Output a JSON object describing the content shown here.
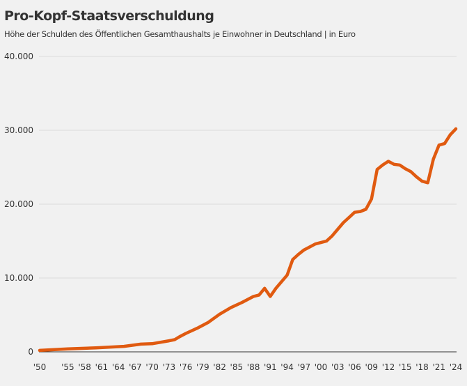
{
  "chart_data": {
    "type": "line",
    "title": "Pro-Kopf-Staatsverschuldung",
    "subtitle": "Höhe der Schulden des Öffentlichen Gesamthaushalts je Einwohner in Deutschland | in Euro",
    "xlabel": "",
    "ylabel": "",
    "ylim": [
      0,
      40000
    ],
    "xlim": [
      1950,
      2024
    ],
    "grid": true,
    "line_color": "#e05a10",
    "y_ticks": [
      {
        "value": 0,
        "label": "0"
      },
      {
        "value": 10000,
        "label": "10.000"
      },
      {
        "value": 20000,
        "label": "20.000"
      },
      {
        "value": 30000,
        "label": "30.000"
      },
      {
        "value": 40000,
        "label": "40.000"
      }
    ],
    "x_ticks": [
      {
        "value": 1950,
        "label": "'50"
      },
      {
        "value": 1955,
        "label": "'55"
      },
      {
        "value": 1958,
        "label": "'58"
      },
      {
        "value": 1961,
        "label": "'61"
      },
      {
        "value": 1964,
        "label": "'64"
      },
      {
        "value": 1967,
        "label": "'67"
      },
      {
        "value": 1970,
        "label": "'70"
      },
      {
        "value": 1973,
        "label": "'73"
      },
      {
        "value": 1976,
        "label": "'76"
      },
      {
        "value": 1979,
        "label": "'79"
      },
      {
        "value": 1982,
        "label": "'82"
      },
      {
        "value": 1985,
        "label": "'85"
      },
      {
        "value": 1988,
        "label": "'88"
      },
      {
        "value": 1991,
        "label": "'91"
      },
      {
        "value": 1994,
        "label": "'94"
      },
      {
        "value": 1997,
        "label": "'97"
      },
      {
        "value": 2000,
        "label": "'00"
      },
      {
        "value": 2003,
        "label": "'03"
      },
      {
        "value": 2006,
        "label": "'06"
      },
      {
        "value": 2009,
        "label": "'09"
      },
      {
        "value": 2012,
        "label": "'12"
      },
      {
        "value": 2015,
        "label": "'15"
      },
      {
        "value": 2018,
        "label": "'18"
      },
      {
        "value": 2021,
        "label": "'21"
      },
      {
        "value": 2024,
        "label": "'24"
      }
    ],
    "x": [
      1950,
      1955,
      1960,
      1965,
      1968,
      1970,
      1973,
      1974,
      1975,
      1976,
      1978,
      1980,
      1982,
      1984,
      1986,
      1988,
      1989,
      1990,
      1991,
      1992,
      1993,
      1994,
      1995,
      1996,
      1997,
      1998,
      1999,
      2000,
      2001,
      2002,
      2003,
      2004,
      2005,
      2006,
      2007,
      2008,
      2009,
      2010,
      2011,
      2012,
      2013,
      2014,
      2015,
      2016,
      2017,
      2018,
      2019,
      2020,
      2021,
      2022,
      2023,
      2024
    ],
    "values": [
      200,
      400,
      550,
      750,
      1050,
      1100,
      1500,
      1650,
      2100,
      2500,
      3200,
      4000,
      5100,
      6000,
      6700,
      7500,
      7700,
      8600,
      7500,
      8600,
      9500,
      10400,
      12500,
      13200,
      13800,
      14200,
      14600,
      14800,
      15000,
      15700,
      16600,
      17500,
      18200,
      18900,
      19000,
      19300,
      20700,
      24700,
      25300,
      25800,
      25400,
      25300,
      24800,
      24400,
      23700,
      23100,
      22900,
      26100,
      28000,
      28200,
      29400,
      30200
    ]
  }
}
